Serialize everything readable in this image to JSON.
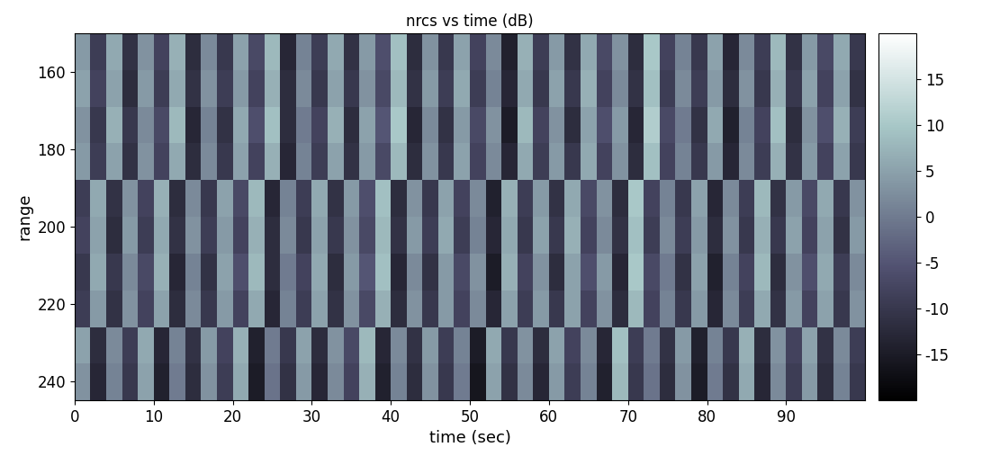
{
  "chart_data": {
    "type": "heatmap",
    "title": "nrcs vs time (dB)",
    "x_label": "time (sec)",
    "y_label": "range",
    "xlim": [
      0,
      100
    ],
    "ylim": [
      245,
      150
    ],
    "xticks": [
      0,
      10,
      20,
      30,
      40,
      50,
      60,
      70,
      80,
      90
    ],
    "yticks": [
      160,
      180,
      200,
      220,
      240
    ],
    "x_edges": [
      0,
      2,
      4,
      6,
      8,
      10,
      12,
      14,
      16,
      18,
      20,
      22,
      24,
      26,
      28,
      30,
      32,
      34,
      36,
      38,
      40,
      42,
      44,
      46,
      48,
      50,
      52,
      54,
      56,
      58,
      60,
      62,
      64,
      66,
      68,
      70,
      72,
      74,
      76,
      78,
      80,
      82,
      84,
      86,
      88,
      90,
      92,
      94,
      96,
      98,
      100
    ],
    "y_edges": [
      150,
      159.5,
      169,
      178.5,
      188,
      197.5,
      207,
      216.5,
      226,
      235.5,
      245
    ],
    "cells": [
      [
        4,
        -9,
        6,
        -11,
        3,
        -8,
        7,
        -12,
        2,
        -10,
        5,
        -7,
        8,
        -13,
        1,
        -9,
        6,
        -11,
        4,
        -6,
        9,
        -12,
        3,
        -10,
        5,
        -8,
        2,
        -14,
        7,
        -9,
        4,
        -11,
        6,
        -7,
        3,
        -12,
        10,
        -8,
        1,
        -10,
        5,
        -13,
        2,
        -9,
        8,
        -11,
        4,
        -7,
        6,
        -10
      ],
      [
        5,
        -8,
        5,
        -12,
        4,
        -9,
        6,
        -11,
        3,
        -9,
        4,
        -8,
        7,
        -12,
        2,
        -10,
        5,
        -10,
        3,
        -7,
        8,
        -11,
        4,
        -9,
        6,
        -9,
        1,
        -13,
        6,
        -10,
        5,
        -10,
        7,
        -8,
        2,
        -11,
        9,
        -9,
        2,
        -9,
        4,
        -12,
        3,
        -10,
        7,
        -10,
        5,
        -8,
        5,
        -11
      ],
      [
        3,
        -10,
        7,
        -10,
        2,
        -7,
        8,
        -13,
        1,
        -11,
        6,
        -6,
        9,
        -12,
        0,
        -8,
        7,
        -12,
        5,
        -5,
        10,
        -13,
        2,
        -11,
        4,
        -7,
        3,
        -15,
        8,
        -8,
        3,
        -12,
        5,
        -6,
        4,
        -13,
        11,
        -7,
        0,
        -11,
        6,
        -14,
        1,
        -8,
        9,
        -12,
        3,
        -6,
        7,
        -9
      ],
      [
        4,
        -9,
        5,
        -11,
        3,
        -8,
        6,
        -12,
        2,
        -10,
        5,
        -8,
        7,
        -13,
        1,
        -9,
        5,
        -11,
        4,
        -7,
        8,
        -12,
        3,
        -10,
        5,
        -8,
        2,
        -13,
        6,
        -9,
        4,
        -10,
        6,
        -8,
        3,
        -12,
        9,
        -8,
        1,
        -10,
        4,
        -13,
        2,
        -9,
        7,
        -11,
        4,
        -8,
        5,
        -10
      ],
      [
        -9,
        6,
        -11,
        3,
        -8,
        7,
        -12,
        2,
        -10,
        5,
        -7,
        8,
        -13,
        1,
        -9,
        6,
        -11,
        4,
        -6,
        9,
        -12,
        3,
        -10,
        5,
        -8,
        2,
        -14,
        7,
        -9,
        4,
        -11,
        6,
        -7,
        3,
        -12,
        10,
        -8,
        1,
        -10,
        5,
        -13,
        2,
        -9,
        8,
        -11,
        4,
        -7,
        6,
        -10,
        3
      ],
      [
        -8,
        5,
        -12,
        4,
        -9,
        6,
        -11,
        3,
        -9,
        4,
        -8,
        7,
        -12,
        2,
        -10,
        5,
        -10,
        3,
        -7,
        8,
        -11,
        4,
        -9,
        6,
        -9,
        1,
        -13,
        6,
        -10,
        5,
        -10,
        7,
        -8,
        2,
        -11,
        9,
        -9,
        2,
        -9,
        4,
        -12,
        3,
        -10,
        7,
        -10,
        5,
        -8,
        5,
        -11,
        4
      ],
      [
        -10,
        6,
        -10,
        2,
        -7,
        7,
        -13,
        1,
        -11,
        5,
        -6,
        8,
        -12,
        0,
        -8,
        6,
        -12,
        4,
        -5,
        9,
        -13,
        2,
        -11,
        4,
        -7,
        3,
        -15,
        7,
        -8,
        3,
        -12,
        5,
        -6,
        4,
        -13,
        10,
        -7,
        0,
        -11,
        5,
        -14,
        1,
        -8,
        8,
        -12,
        3,
        -6,
        6,
        -9,
        2
      ],
      [
        -9,
        4,
        -11,
        3,
        -8,
        5,
        -12,
        2,
        -10,
        4,
        -8,
        6,
        -13,
        1,
        -9,
        5,
        -11,
        3,
        -7,
        7,
        -12,
        3,
        -10,
        4,
        -8,
        2,
        -13,
        5,
        -9,
        4,
        -10,
        5,
        -8,
        3,
        -12,
        8,
        -8,
        1,
        -10,
        4,
        -13,
        2,
        -9,
        6,
        -11,
        4,
        -8,
        5,
        -10,
        3
      ],
      [
        5,
        -12,
        2,
        -9,
        6,
        -13,
        1,
        -11,
        4,
        -8,
        7,
        -14,
        0,
        -10,
        5,
        -12,
        3,
        -7,
        8,
        -13,
        2,
        -11,
        4,
        -9,
        1,
        -15,
        6,
        -10,
        3,
        -12,
        5,
        -8,
        2,
        -13,
        9,
        -9,
        0,
        -11,
        4,
        -14,
        1,
        -10,
        7,
        -12,
        3,
        -8,
        5,
        -11,
        2,
        -9
      ],
      [
        3,
        -13,
        1,
        -10,
        5,
        -14,
        0,
        -12,
        3,
        -9,
        6,
        -15,
        -1,
        -11,
        4,
        -13,
        2,
        -8,
        7,
        -14,
        1,
        -12,
        3,
        -10,
        0,
        -16,
        5,
        -11,
        2,
        -13,
        4,
        -9,
        1,
        -14,
        8,
        -10,
        -1,
        -12,
        3,
        -15,
        0,
        -11,
        6,
        -13,
        2,
        -9,
        4,
        -12,
        1,
        -10
      ]
    ],
    "color_range": [
      -20,
      20
    ],
    "color_ticks": [
      -15,
      -10,
      -5,
      0,
      5,
      10,
      15
    ]
  }
}
